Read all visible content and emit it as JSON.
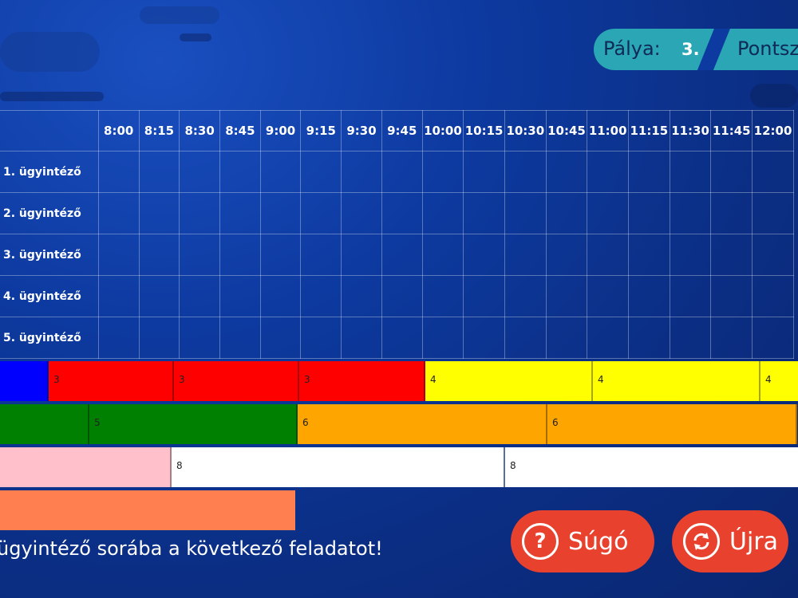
{
  "header": {
    "level_label": "Pálya:",
    "level_value": "3.",
    "score_label": "Pontsz"
  },
  "schedule": {
    "times": [
      "8:00",
      "8:15",
      "8:30",
      "8:45",
      "9:00",
      "9:15",
      "9:30",
      "9:45",
      "10:00",
      "10:15",
      "10:30",
      "10:45",
      "11:00",
      "11:15",
      "11:30",
      "11:45",
      "12:00"
    ],
    "rows": [
      "1. ügyintéző",
      "2. ügyintéző",
      "3. ügyintéző",
      "4. ügyintéző",
      "5. ügyintéző"
    ]
  },
  "tasks": {
    "row1": [
      {
        "label": "",
        "color": "#0000ff"
      },
      {
        "label": "3",
        "color": "#ff0000"
      },
      {
        "label": "3",
        "color": "#ff0000"
      },
      {
        "label": "3",
        "color": "#ff0000"
      },
      {
        "label": "4",
        "color": "#ffff00"
      },
      {
        "label": "4",
        "color": "#ffff00"
      },
      {
        "label": "4",
        "color": "#ffff00"
      }
    ],
    "row2": [
      {
        "label": "",
        "color": "#008000"
      },
      {
        "label": "5",
        "color": "#008000"
      },
      {
        "label": "6",
        "color": "#ffa500"
      },
      {
        "label": "6",
        "color": "#ffa500"
      }
    ],
    "row3": [
      {
        "label": "",
        "color": "#ffc0cb"
      },
      {
        "label": "8",
        "color": "#ffffff"
      },
      {
        "label": "8",
        "color": "#ffffff"
      }
    ],
    "row4": [
      {
        "label": "",
        "color": "#ff7f50"
      }
    ]
  },
  "instruction": "ügyintéző sorába a következő feladatot!",
  "buttons": {
    "help": {
      "label": "Súgó",
      "icon": "question-icon"
    },
    "restart": {
      "label": "Újra",
      "icon": "refresh-icon"
    }
  },
  "colors": {
    "accent_button": "#e8412e",
    "pill": "#2aa6b4",
    "background": "#0d3aa0"
  }
}
